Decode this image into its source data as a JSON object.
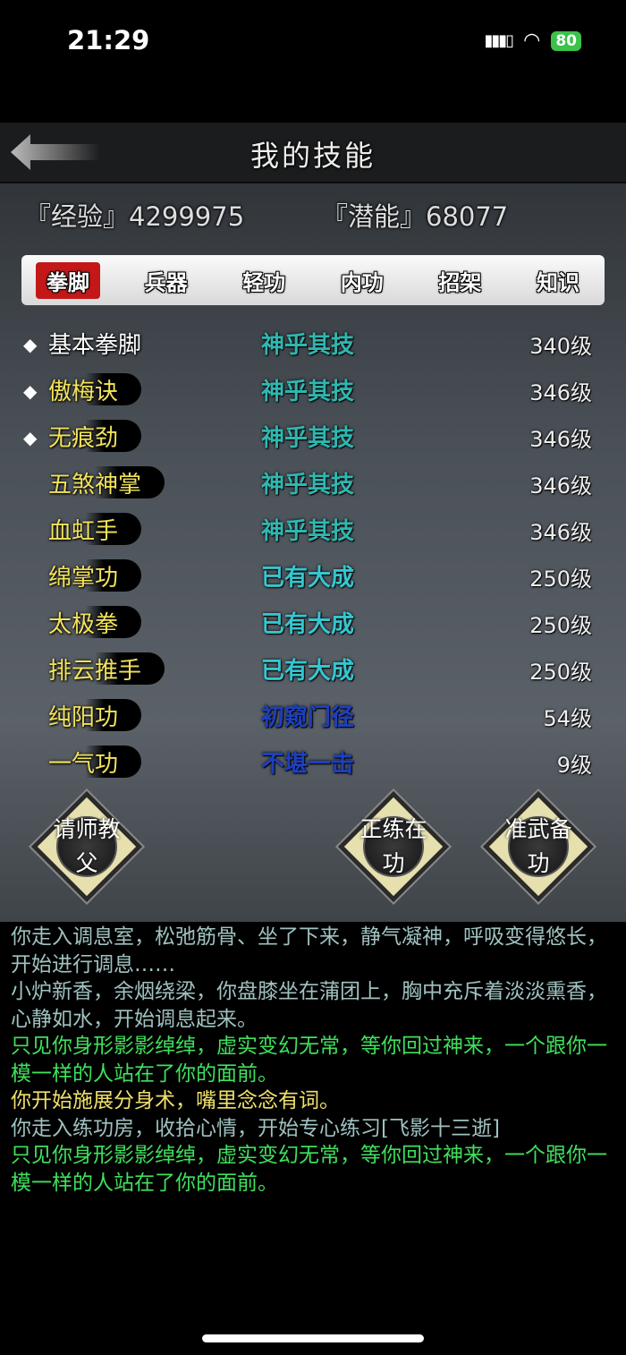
{
  "status_bar": {
    "time": "21:29",
    "battery": "80"
  },
  "header": {
    "title": "我的技能"
  },
  "stats": {
    "exp": "『经验』4299975",
    "potential": "『潜能』68077"
  },
  "tabs": [
    {
      "label": "拳脚",
      "active": true
    },
    {
      "label": "兵器"
    },
    {
      "label": "轻功"
    },
    {
      "label": "内功"
    },
    {
      "label": "招架"
    },
    {
      "label": "知识"
    }
  ],
  "skills": [
    {
      "name": "基本拳脚",
      "rank": "神乎其技",
      "level": "340级",
      "enabled": true,
      "rank_color": "#2fb7b0"
    },
    {
      "name": "傲梅诀",
      "rank": "神乎其技",
      "level": "346级",
      "enabled": true,
      "rank_color": "#2fb7b0"
    },
    {
      "name": "无痕劲",
      "rank": "神乎其技",
      "level": "346级",
      "enabled": true,
      "rank_color": "#2fb7b0"
    },
    {
      "name": "五煞神掌",
      "rank": "神乎其技",
      "level": "346级",
      "enabled": false,
      "rank_color": "#2fb7b0"
    },
    {
      "name": "血虹手",
      "rank": "神乎其技",
      "level": "346级",
      "enabled": false,
      "rank_color": "#2fb7b0"
    },
    {
      "name": "绵掌功",
      "rank": "已有大成",
      "level": "250级",
      "enabled": false,
      "rank_color": "#35c6d0"
    },
    {
      "name": "太极拳",
      "rank": "已有大成",
      "level": "250级",
      "enabled": false,
      "rank_color": "#35c6d0"
    },
    {
      "name": "排云推手",
      "rank": "已有大成",
      "level": "250级",
      "enabled": false,
      "rank_color": "#35c6d0"
    },
    {
      "name": "纯阳功",
      "rank": "初窥门径",
      "level": "54级",
      "enabled": false,
      "rank_color": "#1d3fc0"
    },
    {
      "name": "一气功",
      "rank": "不堪一击",
      "level": "9级",
      "enabled": false,
      "rank_color": "#1d3fc0"
    }
  ],
  "buttons": {
    "teacher": "请师教父",
    "practice": "正练在功",
    "prepare": "准武备功"
  },
  "log": [
    {
      "text": "你走入调息室，松弛筋骨、坐了下来，静气凝神，呼吸变得悠长，开始进行调息……",
      "color": "#9fc2c0"
    },
    {
      "text": "小炉新香，余烟绕梁，你盘膝坐在蒲团上，胸中充斥着淡淡熏香，心静如水，开始调息起来。",
      "color": "#9fc2c0"
    },
    {
      "text": "只见你身形影影绰绰，虚实变幻无常，等你回过神来，一个跟你一模一样的人站在了你的面前。",
      "color": "#3fe05c"
    },
    {
      "text": "你开始施展分身术，嘴里念念有词。",
      "color": "#f0e06a"
    },
    {
      "text": "你走入练功房，收拾心情，开始专心练习[飞影十三逝]",
      "color": "#9fc2c0"
    },
    {
      "text": "只见你身形影影绰绰，虚实变幻无常，等你回过神来，一个跟你一模一样的人站在了你的面前。",
      "color": "#3fe05c"
    }
  ]
}
